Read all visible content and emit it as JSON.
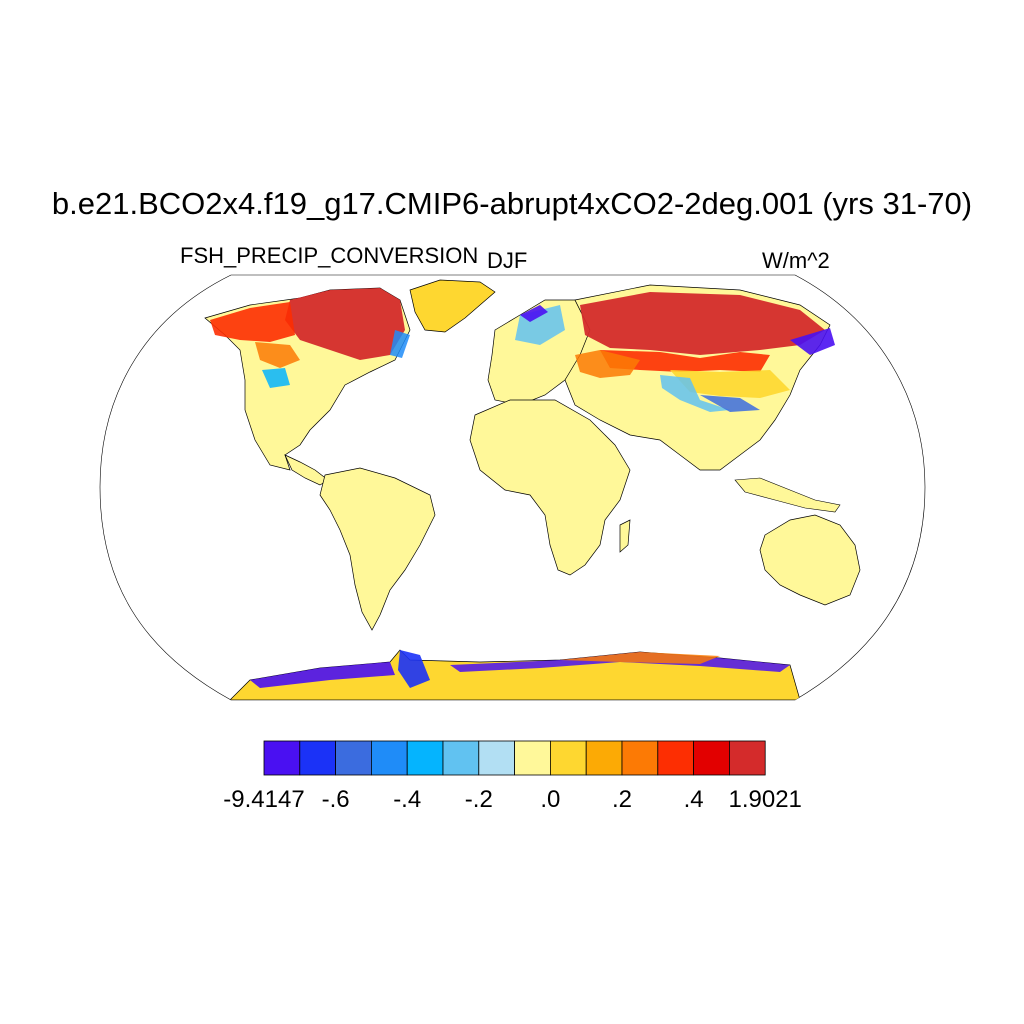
{
  "title": "b.e21.BCO2x4.f19_g17.CMIP6-abrupt4xCO2-2deg.001 (yrs 31-70)",
  "left_label": "FSH_PRECIP_CONVERSION",
  "center_label": "DJF",
  "right_label": "W/m^2",
  "map": {
    "projection": "robinson",
    "land_fill": "#fff899",
    "ocean_fill": "#ffffff"
  },
  "colorbar": {
    "colors": [
      "#4a10f2",
      "#1b32f7",
      "#3b6cdf",
      "#1f8cf8",
      "#05b4fe",
      "#61c2f1",
      "#b2dff3",
      "#fff89a",
      "#fed730",
      "#fcaa05",
      "#fc7a05",
      "#fd2e02",
      "#e20000",
      "#d42b2b"
    ],
    "tick_labels": [
      "-9.4147",
      "-.6",
      "-.4",
      "-.2",
      ".0",
      ".2",
      ".4",
      "1.9021"
    ]
  }
}
